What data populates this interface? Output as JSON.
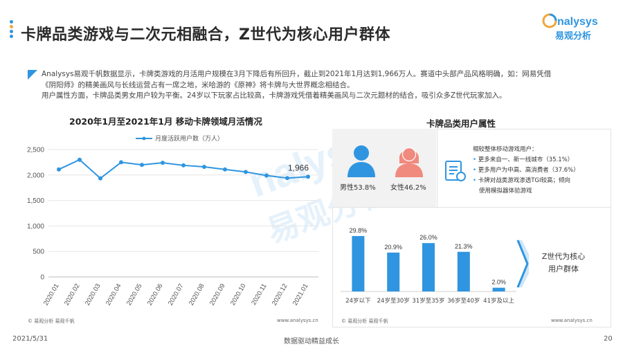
{
  "page": {
    "title": "卡牌品类游戏与二次元相融合，Z世代为核心用户群体",
    "brand_en": "nalysys",
    "brand_cn": "易观分析",
    "brand_color": "#2f95e0",
    "accent_color": "#f1a53c"
  },
  "summary": {
    "line1": "Analysys易观千帆数据显示，卡牌类游戏的月活用户规模在3月下降后有所回升，截止到2021年1月达到1,966万人。赛道中头部产品风格明确，如：网易凭借",
    "line2": "《阴阳师》的精美画风与长线运营占有一席之地，米哈游的《原神》将卡牌与大世界概念相结合。",
    "line3": "用户属性方面，卡牌品类男女用户较为平衡。24岁以下玩家占比较高，卡牌游戏凭借着精美画风与二次元题材的结合，吸引众多Z世代玩家加入。"
  },
  "watermark": {
    "en": "nalysys",
    "cn": "易观分析"
  },
  "left_chart": {
    "title": "2020年1月至2021年1月 移动卡牌领域月活情况",
    "source_left": "© 易观分析    易观千帆",
    "source_right": "www.analysys.cn"
  },
  "right_panel": {
    "title": "卡牌品类用户属性",
    "male_label": "男性53.8%",
    "female_label": "女性46.2%",
    "male_icon": "male-user-icon",
    "female_icon": "female-user-icon",
    "doc_icon": "document-icon",
    "notes_heading": "相较整体移动游戏用户：",
    "notes": [
      "更多来自一、新一线城市（35.1%）",
      "更多用户为中高、高消费者（37.6%）",
      "卡牌对战类游戏渗透TGI较高；倾向",
      "使用模拟器体验游戏"
    ],
    "z_label_1": "Z世代为核心",
    "z_label_2": "用户群体",
    "source_left": "© 易观分析    易观千帆",
    "source_right": "www.analysys.cn",
    "male_color": "#2f95e0",
    "female_color": "#f08a7e"
  },
  "footer": {
    "date": "2021/5/31",
    "slogan": "数据驱动精益成长",
    "page_number": "20"
  },
  "chart_data": [
    {
      "type": "line",
      "title": "2020年1月至2021年1月 移动卡牌领域月活情况",
      "categories": [
        "2020.01",
        "2020.02",
        "2020.03",
        "2020.04",
        "2020.05",
        "2020.06",
        "2020.07",
        "2020.08",
        "2020.09",
        "2020.10",
        "2020.11",
        "2020.12",
        "2021.01"
      ],
      "series": [
        {
          "name": "月度活跃用户数（万人）",
          "values": [
            2110,
            2300,
            1935,
            2250,
            2200,
            2240,
            2190,
            2160,
            2110,
            2060,
            1990,
            1940,
            1966
          ]
        }
      ],
      "data_labels": [
        {
          "category": "2021.01",
          "text": "1,966"
        }
      ],
      "ylim": [
        0,
        2500
      ],
      "yticks": [
        0,
        500,
        1000,
        1500,
        2000,
        2500
      ],
      "ytick_labels": [
        "0",
        "500",
        "1,000",
        "1,500",
        "2,000",
        "2,500"
      ],
      "grid": true,
      "legend": "top",
      "color": "#2f95e0"
    },
    {
      "type": "bar",
      "categories": [
        "24岁以下",
        "24岁至30岁",
        "31岁至35岁",
        "36岁至40岁",
        "41岁及以上"
      ],
      "values": [
        29.8,
        20.9,
        26.0,
        21.3,
        2.0
      ],
      "value_labels": [
        "29.8%",
        "20.9%",
        "26.0%",
        "21.3%",
        "2.0%"
      ],
      "ylim": [
        0,
        32
      ],
      "grid": false,
      "color": "#2f95e0"
    }
  ]
}
